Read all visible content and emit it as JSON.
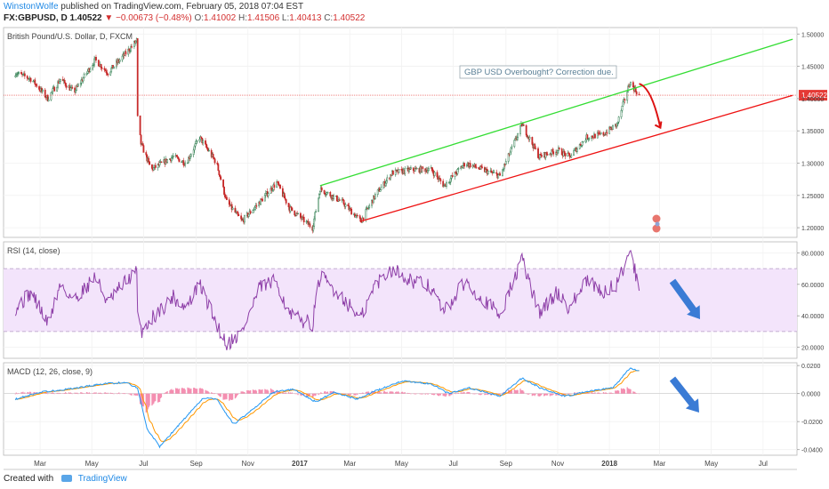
{
  "header": {
    "author": "WinstonWolfe",
    "published": "published on TradingView.com, February 05, 2018 07:04 EST",
    "symbol": "FX:GBPUSD, D",
    "price": "1.40522",
    "change": "−0.00673 (−0.48%)",
    "o_label": "O:",
    "o_value": "1.41002",
    "h_label": "H:",
    "h_value": "1.41506",
    "l_label": "L:",
    "l_value": "1.40413",
    "c_label": "C:",
    "c_value": "1.40522"
  },
  "footer": {
    "created_with": "Created with",
    "brand": "TradingView"
  },
  "colors": {
    "bull": "#2e7d4f",
    "bear": "#c62828",
    "green_line": "#33dd33",
    "red_line": "#ee1111",
    "rsi": "#8e3fa8",
    "rsi_band": "#f3e4fb",
    "macd": "#2196f3",
    "signal": "#ff9800",
    "hist": "#e91e63",
    "arrow_blue": "#3a7bd5",
    "price_tag": "#e53935"
  },
  "chart_data": [
    {
      "type": "candlestick",
      "title": "British Pound/U.S. Dollar, D, FXCM",
      "x_ticks": [
        "Mar",
        "May",
        "Jul",
        "Sep",
        "Nov",
        "2017",
        "Mar",
        "May",
        "Jul",
        "Sep",
        "Nov",
        "2018",
        "Mar",
        "May",
        "Jul"
      ],
      "y_ticks": [
        "1.50000",
        "1.45000",
        "1.40000",
        "1.35000",
        "1.30000",
        "1.25000",
        "1.20000"
      ],
      "ylim": [
        1.185,
        1.51
      ],
      "last_price": "1.40522",
      "annotation": "GBP USD Overbought? Correction due.",
      "price_anchors": [
        [
          "2016-02-01",
          1.44
        ],
        [
          "2016-02-20",
          1.43
        ],
        [
          "2016-03-10",
          1.4
        ],
        [
          "2016-03-25",
          1.43
        ],
        [
          "2016-04-10",
          1.41
        ],
        [
          "2016-05-05",
          1.46
        ],
        [
          "2016-05-20",
          1.44
        ],
        [
          "2016-06-10",
          1.47
        ],
        [
          "2016-06-23",
          1.49
        ],
        [
          "2016-06-24",
          1.37
        ],
        [
          "2016-06-28",
          1.33
        ],
        [
          "2016-07-10",
          1.29
        ],
        [
          "2016-08-05",
          1.31
        ],
        [
          "2016-08-20",
          1.3
        ],
        [
          "2016-09-05",
          1.34
        ],
        [
          "2016-09-25",
          1.3
        ],
        [
          "2016-10-07",
          1.24
        ],
        [
          "2016-10-25",
          1.21
        ],
        [
          "2016-11-15",
          1.24
        ],
        [
          "2016-12-05",
          1.27
        ],
        [
          "2016-12-20",
          1.23
        ],
        [
          "2017-01-16",
          1.2
        ],
        [
          "2017-01-25",
          1.26
        ],
        [
          "2017-02-20",
          1.24
        ],
        [
          "2017-03-14",
          1.21
        ],
        [
          "2017-03-31",
          1.25
        ],
        [
          "2017-04-20",
          1.285
        ],
        [
          "2017-05-15",
          1.29
        ],
        [
          "2017-06-05",
          1.29
        ],
        [
          "2017-06-20",
          1.265
        ],
        [
          "2017-07-15",
          1.3
        ],
        [
          "2017-08-25",
          1.28
        ],
        [
          "2017-09-20",
          1.36
        ],
        [
          "2017-10-10",
          1.31
        ],
        [
          "2017-11-01",
          1.32
        ],
        [
          "2017-11-15",
          1.31
        ],
        [
          "2017-12-05",
          1.34
        ],
        [
          "2017-12-25",
          1.345
        ],
        [
          "2018-01-10",
          1.36
        ],
        [
          "2018-01-25",
          1.425
        ],
        [
          "2018-02-05",
          1.405
        ]
      ],
      "resistance_line": {
        "from": [
          "2017-01-25",
          1.265
        ],
        "to": [
          "2018-08-05",
          1.492
        ],
        "color": "green"
      },
      "support_line": {
        "from": [
          "2017-03-14",
          1.21
        ],
        "to": [
          "2018-08-05",
          1.405
        ],
        "color": "red"
      },
      "forecast_arrow": {
        "from": [
          "2018-02-05",
          1.423
        ],
        "to": [
          "2018-03-02",
          1.355
        ]
      }
    },
    {
      "type": "line",
      "title": "RSI (14, close)",
      "y_ticks": [
        "80.0000",
        "60.0000",
        "40.0000",
        "20.0000"
      ],
      "ylim": [
        13,
        87
      ],
      "bands": [
        30,
        70
      ],
      "anchors": [
        [
          "2016-02-01",
          45
        ],
        [
          "2016-02-20",
          55
        ],
        [
          "2016-03-10",
          35
        ],
        [
          "2016-03-25",
          60
        ],
        [
          "2016-04-10",
          50
        ],
        [
          "2016-05-05",
          65
        ],
        [
          "2016-05-20",
          48
        ],
        [
          "2016-06-10",
          62
        ],
        [
          "2016-06-23",
          68
        ],
        [
          "2016-06-24",
          40
        ],
        [
          "2016-06-28",
          30
        ],
        [
          "2016-07-10",
          38
        ],
        [
          "2016-08-05",
          52
        ],
        [
          "2016-08-20",
          45
        ],
        [
          "2016-09-05",
          60
        ],
        [
          "2016-09-25",
          35
        ],
        [
          "2016-10-07",
          22
        ],
        [
          "2016-10-25",
          30
        ],
        [
          "2016-11-15",
          58
        ],
        [
          "2016-12-05",
          62
        ],
        [
          "2016-12-20",
          40
        ],
        [
          "2017-01-16",
          35
        ],
        [
          "2017-01-25",
          65
        ],
        [
          "2017-02-20",
          52
        ],
        [
          "2017-03-14",
          38
        ],
        [
          "2017-03-31",
          60
        ],
        [
          "2017-04-20",
          70
        ],
        [
          "2017-05-15",
          62
        ],
        [
          "2017-06-05",
          58
        ],
        [
          "2017-06-20",
          42
        ],
        [
          "2017-07-15",
          62
        ],
        [
          "2017-08-25",
          40
        ],
        [
          "2017-09-20",
          76
        ],
        [
          "2017-10-10",
          42
        ],
        [
          "2017-11-01",
          55
        ],
        [
          "2017-11-15",
          45
        ],
        [
          "2017-12-05",
          62
        ],
        [
          "2017-12-25",
          55
        ],
        [
          "2018-01-10",
          60
        ],
        [
          "2018-01-25",
          82
        ],
        [
          "2018-02-05",
          58
        ]
      ]
    },
    {
      "type": "line",
      "title": "MACD (12, 26, close, 9)",
      "y_ticks": [
        "0.0200",
        "0.0000",
        "-0.0200",
        "-0.0400"
      ],
      "ylim": [
        -0.044,
        0.022
      ],
      "series": [
        {
          "name": "MACD",
          "color": "macd"
        },
        {
          "name": "Signal",
          "color": "signal"
        },
        {
          "name": "Histogram",
          "color": "hist"
        }
      ],
      "anchors": [
        [
          "2016-02-01",
          -0.004
        ],
        [
          "2016-03-01",
          0.001
        ],
        [
          "2016-04-01",
          0.003
        ],
        [
          "2016-05-15",
          0.007
        ],
        [
          "2016-06-10",
          0.008
        ],
        [
          "2016-06-24",
          0.004
        ],
        [
          "2016-07-05",
          -0.025
        ],
        [
          "2016-07-20",
          -0.038
        ],
        [
          "2016-08-15",
          -0.02
        ],
        [
          "2016-09-10",
          -0.003
        ],
        [
          "2016-09-25",
          -0.004
        ],
        [
          "2016-10-15",
          -0.022
        ],
        [
          "2016-11-05",
          -0.012
        ],
        [
          "2016-12-01",
          0.001
        ],
        [
          "2016-12-25",
          0.003
        ],
        [
          "2017-01-20",
          -0.006
        ],
        [
          "2017-02-10",
          0.001
        ],
        [
          "2017-03-10",
          -0.004
        ],
        [
          "2017-04-01",
          0.002
        ],
        [
          "2017-05-01",
          0.009
        ],
        [
          "2017-06-05",
          0.007
        ],
        [
          "2017-06-25",
          0.0
        ],
        [
          "2017-07-20",
          0.004
        ],
        [
          "2017-08-25",
          -0.002
        ],
        [
          "2017-09-20",
          0.011
        ],
        [
          "2017-10-15",
          0.003
        ],
        [
          "2017-11-10",
          -0.002
        ],
        [
          "2017-12-10",
          0.002
        ],
        [
          "2018-01-05",
          0.004
        ],
        [
          "2018-01-25",
          0.018
        ],
        [
          "2018-02-05",
          0.016
        ]
      ]
    }
  ]
}
